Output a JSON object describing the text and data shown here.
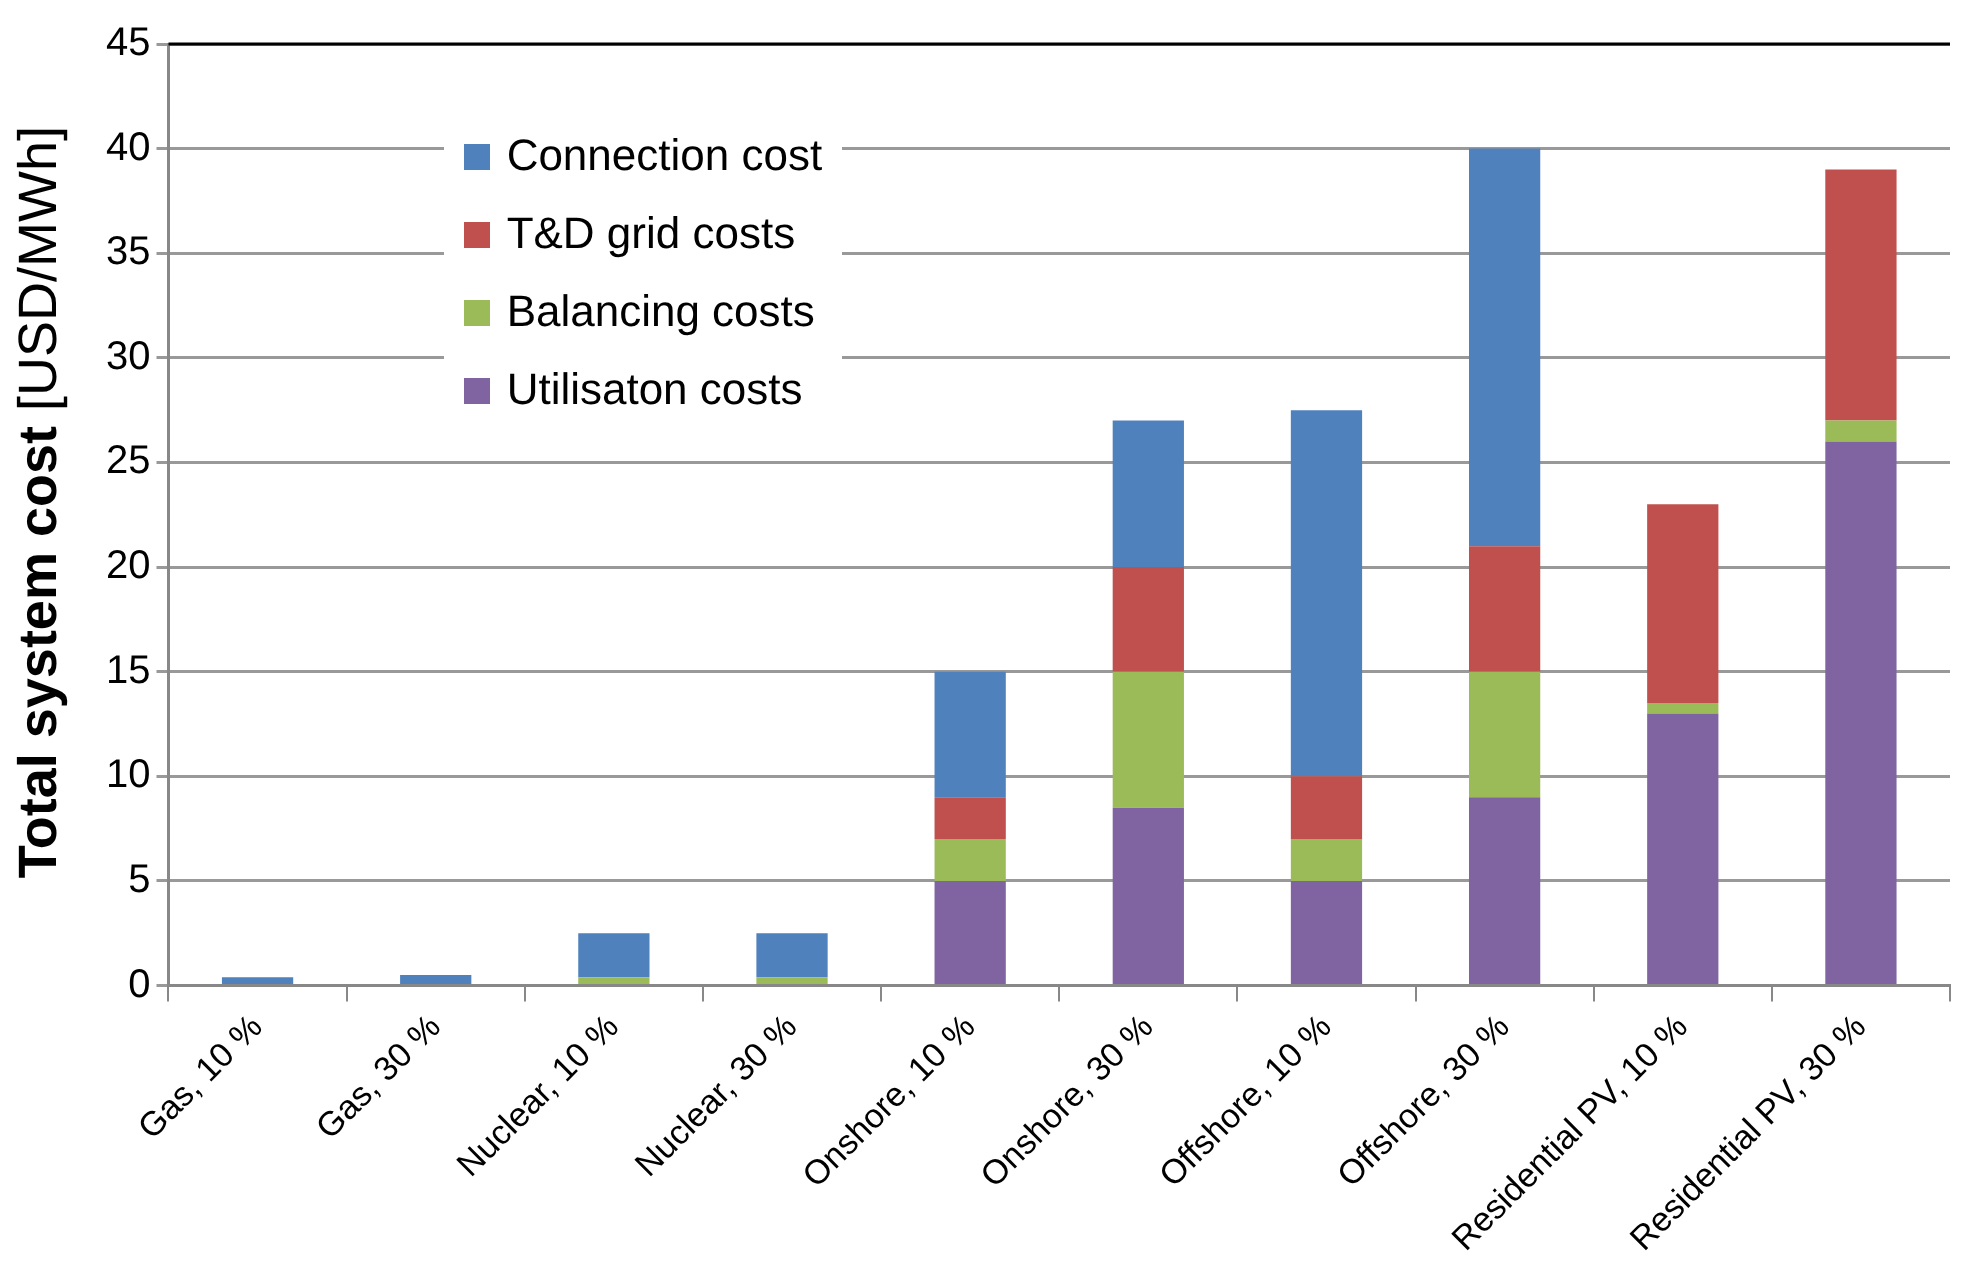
{
  "chart_data": {
    "type": "bar",
    "stacked": true,
    "ylabel": "Total system cost [USD/MWh]",
    "categories": [
      "Gas, 10 %",
      "Gas, 30 %",
      "Nuclear, 10 %",
      "Nuclear, 30 %",
      "Onshore, 10 %",
      "Onshore, 30 %",
      "Offshore, 10 %",
      "Offshore, 30 %",
      "Residential PV, 10 %",
      "Residential PV, 30 %"
    ],
    "series": [
      {
        "name": "Utilisaton costs",
        "color": "#8064a2",
        "values": [
          0,
          0,
          0,
          0,
          5,
          8.5,
          5,
          9,
          13,
          26
        ]
      },
      {
        "name": "Balancing costs",
        "color": "#9bbb59",
        "values": [
          0,
          0,
          0.4,
          0.4,
          2,
          6.5,
          2,
          6,
          0.5,
          1
        ]
      },
      {
        "name": "T&D grid costs",
        "color": "#c0504d",
        "values": [
          0,
          0,
          0,
          0,
          2,
          5,
          3,
          6,
          9.5,
          12
        ]
      },
      {
        "name": "Connection cost",
        "color": "#4f81bd",
        "values": [
          0.4,
          0.5,
          2.1,
          2.1,
          6,
          7,
          17.5,
          19,
          0,
          0
        ]
      }
    ],
    "ylim": [
      0,
      45
    ],
    "yticks": [
      0,
      5,
      10,
      15,
      20,
      25,
      30,
      35,
      40,
      45
    ],
    "grid": "y",
    "legend": "top left"
  }
}
